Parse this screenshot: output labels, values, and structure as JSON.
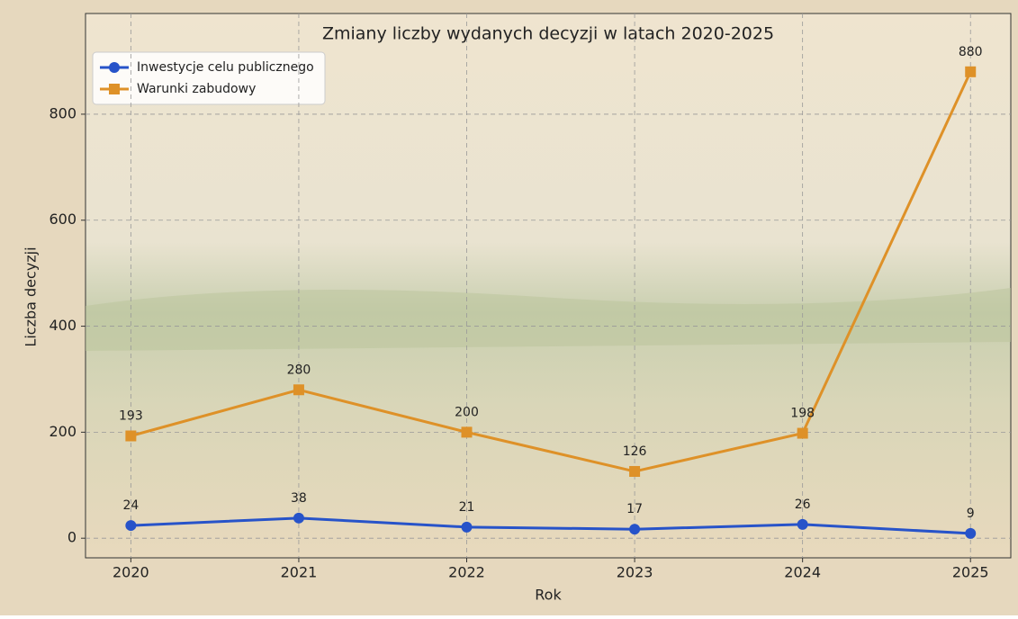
{
  "chart_data": {
    "type": "line",
    "title": "Zmiany liczby wydanych decyzji w latach 2020-2025",
    "x_label": "Rok",
    "y_label": "Liczba decyzji",
    "x": [
      2020,
      2021,
      2022,
      2023,
      2024,
      2025
    ],
    "series": [
      {
        "name": "Inwestycje celu publicznego",
        "color": "#2753c9",
        "marker": "circle",
        "values": [
          24,
          38,
          21,
          17,
          26,
          9
        ]
      },
      {
        "name": "Warunki zabudowy",
        "color": "#de9128",
        "marker": "square",
        "values": [
          193,
          280,
          200,
          126,
          198,
          880
        ]
      }
    ],
    "xlim": [
      2019.73,
      2025.24
    ],
    "xticks": [
      2020,
      2021,
      2022,
      2023,
      2024,
      2025
    ],
    "ylim": [
      -37,
      990
    ],
    "yticks": [
      0,
      200,
      400,
      600,
      800
    ],
    "grid": true,
    "legend": "upper-left"
  }
}
